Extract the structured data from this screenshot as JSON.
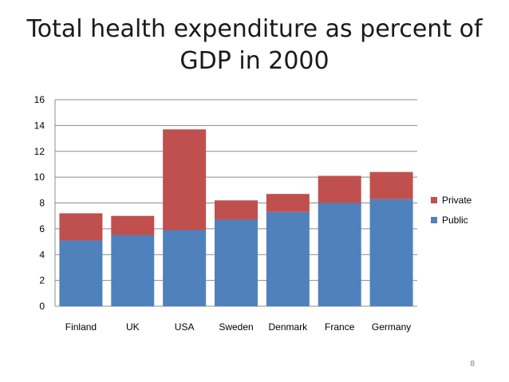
{
  "slide": {
    "title_line1": "Total health expenditure as percent of",
    "title_line2": "GDP in 2000",
    "page_number": "8"
  },
  "chart_data": {
    "type": "bar",
    "stacked": true,
    "title": "Total health expenditure as percent of GDP in 2000",
    "categories": [
      "Finland",
      "UK",
      "USA",
      "Sweden",
      "Denmark",
      "France",
      "Germany"
    ],
    "series": [
      {
        "name": "Public",
        "color": "#4f81bd",
        "values": [
          5.1,
          5.5,
          5.9,
          6.7,
          7.3,
          8.0,
          8.3
        ]
      },
      {
        "name": "Private",
        "color": "#c0504d",
        "values": [
          2.1,
          1.5,
          7.8,
          1.5,
          1.4,
          2.1,
          2.1
        ]
      }
    ],
    "ylim": [
      0,
      16
    ],
    "yticks": [
      0,
      2,
      4,
      6,
      8,
      10,
      12,
      14,
      16
    ],
    "grid": true,
    "legend": {
      "position": "right",
      "order": [
        "Private",
        "Public"
      ]
    }
  }
}
